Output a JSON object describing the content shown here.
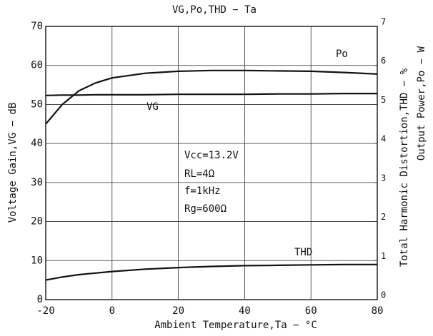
{
  "chart_data": {
    "type": "line",
    "title": "VG,Po,THD − Ta",
    "xlabel": "Ambient Temperature,Ta − °C",
    "ylabel": "Voltage Gain,VG − dB",
    "y2labels": [
      "Total Harmonic Distortion,THD − %",
      "Output Power,Po − W"
    ],
    "x": [
      -20,
      -15,
      -10,
      -5,
      0,
      10,
      20,
      30,
      40,
      50,
      60,
      70,
      80
    ],
    "series": [
      {
        "name": "Po",
        "color": "#111111",
        "axis": "y2",
        "values": [
          4.5,
          5.0,
          5.35,
          5.55,
          5.68,
          5.8,
          5.85,
          5.87,
          5.87,
          5.86,
          5.85,
          5.82,
          5.78
        ]
      },
      {
        "name": "VG",
        "color": "#111111",
        "values": [
          52.3,
          52.4,
          52.4,
          52.5,
          52.5,
          52.5,
          52.6,
          52.6,
          52.6,
          52.7,
          52.7,
          52.8,
          52.8
        ]
      },
      {
        "name": "THD",
        "color": "#111111",
        "axis": "y2",
        "values": [
          0.5,
          0.58,
          0.64,
          0.68,
          0.72,
          0.78,
          0.82,
          0.85,
          0.87,
          0.88,
          0.89,
          0.9,
          0.9
        ]
      }
    ],
    "annotations": [
      "Vcc=13.2V",
      "RL=4Ω",
      "f=1kHz",
      "Rg=600Ω"
    ],
    "xlim": [
      -20,
      80
    ],
    "xticks": [
      -20,
      0,
      20,
      40,
      60,
      80
    ],
    "ylim": [
      0,
      70
    ],
    "yticks": [
      0,
      10,
      20,
      30,
      40,
      50,
      60,
      70
    ],
    "y2lim": [
      0,
      7
    ],
    "y2ticks": [
      0,
      1,
      2,
      3,
      4,
      5,
      6,
      7
    ],
    "grid": true
  }
}
